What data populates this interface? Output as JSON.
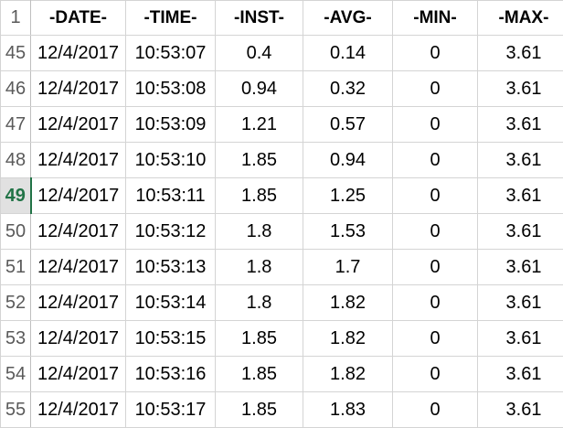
{
  "header": {
    "row_number": "1",
    "columns": [
      "-DATE-",
      "-TIME-",
      "-INST-",
      "-AVG-",
      "-MIN-",
      "-MAX-"
    ]
  },
  "active_row": "49",
  "rows": [
    {
      "num": "45",
      "cells": [
        "12/4/2017",
        "10:53:07",
        "0.4",
        "0.14",
        "0",
        "3.61"
      ]
    },
    {
      "num": "46",
      "cells": [
        "12/4/2017",
        "10:53:08",
        "0.94",
        "0.32",
        "0",
        "3.61"
      ]
    },
    {
      "num": "47",
      "cells": [
        "12/4/2017",
        "10:53:09",
        "1.21",
        "0.57",
        "0",
        "3.61"
      ]
    },
    {
      "num": "48",
      "cells": [
        "12/4/2017",
        "10:53:10",
        "1.85",
        "0.94",
        "0",
        "3.61"
      ]
    },
    {
      "num": "49",
      "cells": [
        "12/4/2017",
        "10:53:11",
        "1.85",
        "1.25",
        "0",
        "3.61"
      ]
    },
    {
      "num": "50",
      "cells": [
        "12/4/2017",
        "10:53:12",
        "1.8",
        "1.53",
        "0",
        "3.61"
      ]
    },
    {
      "num": "51",
      "cells": [
        "12/4/2017",
        "10:53:13",
        "1.8",
        "1.7",
        "0",
        "3.61"
      ]
    },
    {
      "num": "52",
      "cells": [
        "12/4/2017",
        "10:53:14",
        "1.8",
        "1.82",
        "0",
        "3.61"
      ]
    },
    {
      "num": "53",
      "cells": [
        "12/4/2017",
        "10:53:15",
        "1.85",
        "1.82",
        "0",
        "3.61"
      ]
    },
    {
      "num": "54",
      "cells": [
        "12/4/2017",
        "10:53:16",
        "1.85",
        "1.82",
        "0",
        "3.61"
      ]
    },
    {
      "num": "55",
      "cells": [
        "12/4/2017",
        "10:53:17",
        "1.85",
        "1.83",
        "0",
        "3.61"
      ]
    }
  ]
}
